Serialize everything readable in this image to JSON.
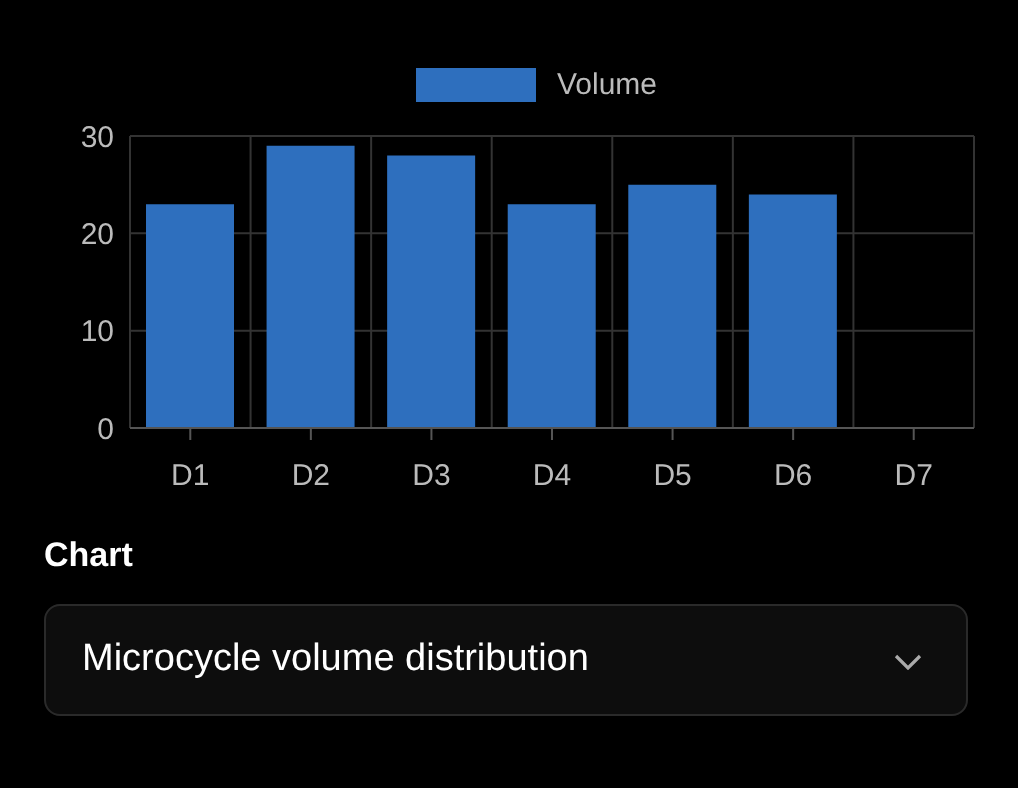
{
  "chart_data": {
    "type": "bar",
    "categories": [
      "D1",
      "D2",
      "D3",
      "D4",
      "D5",
      "D6",
      "D7"
    ],
    "series": [
      {
        "name": "Volume",
        "color": "#2e6fbe",
        "values": [
          23,
          29,
          28,
          23,
          25,
          24,
          null
        ]
      }
    ],
    "ylim": [
      0,
      30
    ],
    "yticks": [
      0,
      10,
      20,
      30
    ],
    "grid": true,
    "legend": "top",
    "annotations": [
      "Chart",
      "Microcycle volume distribution"
    ]
  }
}
